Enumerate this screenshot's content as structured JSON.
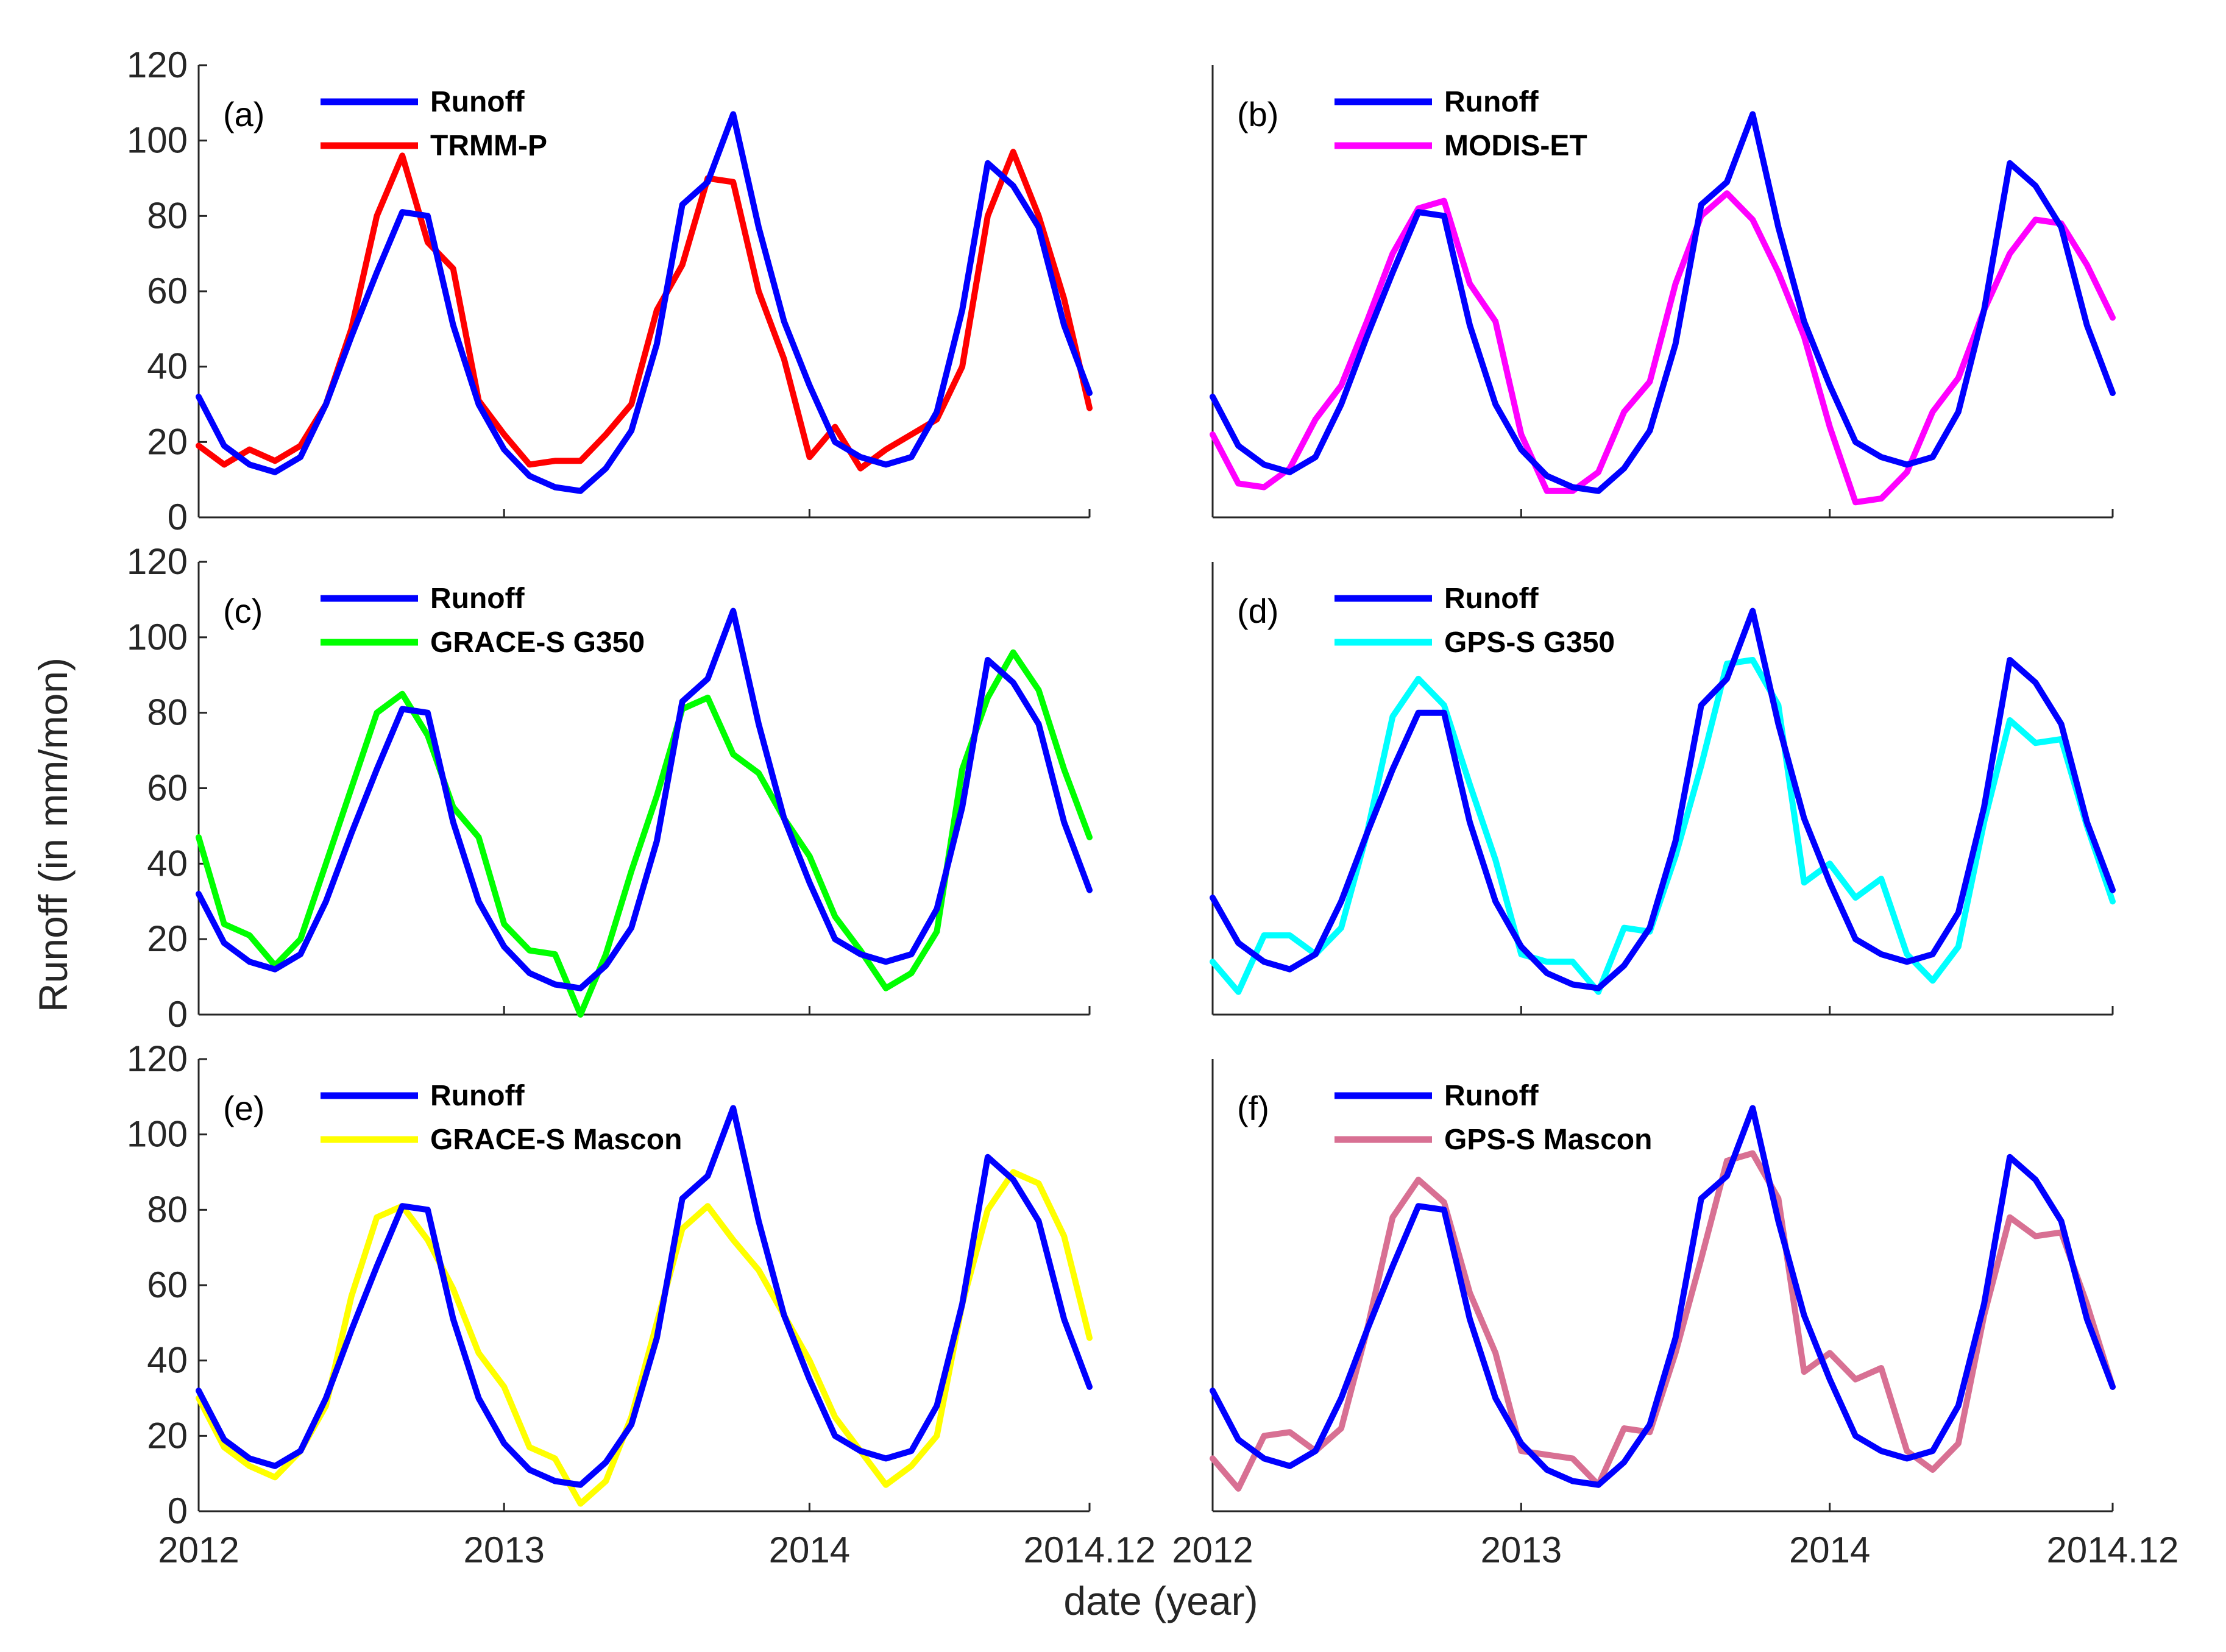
{
  "figure": {
    "ylabel": "Runoff (in mm/mon)",
    "xlabel": "date (year)"
  },
  "colors": {
    "Runoff": "#0000FF",
    "TRMM-P": "#FF0000",
    "MODIS-ET": "#FF00FF",
    "GRACE-S G350": "#00FF00",
    "GPS-S G350": "#00FFFF",
    "GRACE-S Mascon": "#FFFF00",
    "GPS-S Mascon": "#D87093"
  },
  "chart_data": [
    {
      "type": "line",
      "panel": "(a)",
      "xlim": [
        2012,
        2014.917
      ],
      "ylim": [
        0,
        120
      ],
      "x_ticks": [
        2012,
        2013,
        2014,
        2014.917
      ],
      "x_tick_labels": [
        "2012",
        "2013",
        "2014",
        "2014.12"
      ],
      "y_ticks": [
        0,
        20,
        40,
        60,
        80,
        100,
        120
      ],
      "y_tick_labels": [
        "0",
        "20",
        "40",
        "60",
        "80",
        "100",
        "120"
      ],
      "show_y_ticks": true,
      "series": [
        {
          "name": "Runoff",
          "values": [
            32,
            19,
            14,
            12,
            16,
            30,
            48,
            65,
            81,
            80,
            51,
            30,
            18,
            11,
            8,
            7,
            13,
            23,
            46,
            83,
            89,
            107,
            77,
            52,
            35,
            20,
            16,
            14,
            16,
            28,
            55,
            94,
            88,
            77,
            51,
            33
          ]
        },
        {
          "name": "TRMM-P",
          "values": [
            19,
            14,
            18,
            15,
            19,
            30,
            50,
            80,
            96,
            73,
            66,
            31,
            22,
            14,
            15,
            15,
            22,
            30,
            55,
            67,
            90,
            89,
            60,
            42,
            16,
            24,
            13,
            18,
            22,
            26,
            40,
            80,
            97,
            80,
            58,
            29
          ]
        }
      ]
    },
    {
      "type": "line",
      "panel": "(b)",
      "xlim": [
        2012,
        2014.917
      ],
      "ylim": [
        0,
        120
      ],
      "x_ticks": [
        2012,
        2013,
        2014,
        2014.917
      ],
      "x_tick_labels": [
        "2012",
        "2013",
        "2014",
        "2014.12"
      ],
      "y_ticks": [
        0,
        20,
        40,
        60,
        80,
        100,
        120
      ],
      "y_tick_labels": [
        "0",
        "20",
        "40",
        "60",
        "80",
        "100",
        "120"
      ],
      "show_y_ticks": false,
      "series": [
        {
          "name": "Runoff",
          "values": [
            32,
            19,
            14,
            12,
            16,
            30,
            48,
            65,
            81,
            80,
            51,
            30,
            18,
            11,
            8,
            7,
            13,
            23,
            46,
            83,
            89,
            107,
            77,
            52,
            35,
            20,
            16,
            14,
            16,
            28,
            55,
            94,
            88,
            77,
            51,
            33
          ]
        },
        {
          "name": "MODIS-ET",
          "values": [
            22,
            9,
            8,
            13,
            26,
            35,
            52,
            70,
            82,
            84,
            62,
            52,
            22,
            7,
            7,
            12,
            28,
            36,
            62,
            80,
            86,
            79,
            65,
            48,
            24,
            4,
            5,
            12,
            28,
            37,
            55,
            70,
            79,
            78,
            67,
            53
          ]
        }
      ]
    },
    {
      "type": "line",
      "panel": "(c)",
      "xlim": [
        2012,
        2014.917
      ],
      "ylim": [
        0,
        120
      ],
      "x_ticks": [
        2012,
        2013,
        2014,
        2014.917
      ],
      "x_tick_labels": [
        "2012",
        "2013",
        "2014",
        "2014.12"
      ],
      "y_ticks": [
        0,
        20,
        40,
        60,
        80,
        100,
        120
      ],
      "y_tick_labels": [
        "0",
        "20",
        "40",
        "60",
        "80",
        "100",
        "120"
      ],
      "show_y_ticks": true,
      "series": [
        {
          "name": "Runoff",
          "values": [
            32,
            19,
            14,
            12,
            16,
            30,
            48,
            65,
            81,
            80,
            51,
            30,
            18,
            11,
            8,
            7,
            13,
            23,
            46,
            83,
            89,
            107,
            77,
            52,
            35,
            20,
            16,
            14,
            16,
            28,
            55,
            94,
            88,
            77,
            51,
            33
          ]
        },
        {
          "name": "GRACE-S G350",
          "values": [
            47,
            24,
            21,
            13,
            20,
            40,
            60,
            80,
            85,
            74,
            55,
            47,
            24,
            17,
            16,
            0,
            16,
            38,
            58,
            81,
            84,
            69,
            64,
            52,
            42,
            26,
            17,
            7,
            11,
            22,
            65,
            84,
            96,
            86,
            65,
            47
          ]
        }
      ]
    },
    {
      "type": "line",
      "panel": "(d)",
      "xlim": [
        2012,
        2014.917
      ],
      "ylim": [
        0,
        120
      ],
      "x_ticks": [
        2012,
        2013,
        2014,
        2014.917
      ],
      "x_tick_labels": [
        "2012",
        "2013",
        "2014",
        "2014.12"
      ],
      "y_ticks": [
        0,
        20,
        40,
        60,
        80,
        100,
        120
      ],
      "y_tick_labels": [
        "0",
        "20",
        "40",
        "60",
        "80",
        "100",
        "120"
      ],
      "show_y_ticks": false,
      "series": [
        {
          "name": "Runoff",
          "values": [
            31,
            19,
            14,
            12,
            16,
            30,
            48,
            65,
            80,
            80,
            51,
            30,
            18,
            11,
            8,
            7,
            13,
            23,
            46,
            82,
            89,
            107,
            77,
            52,
            35,
            20,
            16,
            14,
            16,
            27,
            55,
            94,
            88,
            77,
            51,
            33
          ]
        },
        {
          "name": "GPS-S G350",
          "values": [
            14,
            6,
            21,
            21,
            16,
            23,
            48,
            79,
            89,
            82,
            61,
            41,
            16,
            14,
            14,
            6,
            23,
            22,
            42,
            66,
            93,
            94,
            82,
            35,
            40,
            31,
            36,
            16,
            9,
            18,
            51,
            78,
            72,
            73,
            50,
            30
          ]
        }
      ]
    },
    {
      "type": "line",
      "panel": "(e)",
      "xlim": [
        2012,
        2014.917
      ],
      "ylim": [
        0,
        120
      ],
      "x_ticks": [
        2012,
        2013,
        2014,
        2014.917
      ],
      "x_tick_labels": [
        "2012",
        "2013",
        "2014",
        "2014.12"
      ],
      "y_ticks": [
        0,
        20,
        40,
        60,
        80,
        100,
        120
      ],
      "y_tick_labels": [
        "0",
        "20",
        "40",
        "60",
        "80",
        "100",
        "120"
      ],
      "show_y_ticks": true,
      "series": [
        {
          "name": "Runoff",
          "values": [
            32,
            19,
            14,
            12,
            16,
            30,
            48,
            65,
            81,
            80,
            51,
            30,
            18,
            11,
            8,
            7,
            13,
            23,
            46,
            83,
            89,
            107,
            77,
            52,
            35,
            20,
            16,
            14,
            16,
            28,
            55,
            94,
            88,
            77,
            51,
            33
          ]
        },
        {
          "name": "GRACE-S Mascon",
          "values": [
            30,
            17,
            12,
            9,
            16,
            28,
            57,
            78,
            81,
            72,
            59,
            42,
            33,
            17,
            14,
            2,
            8,
            25,
            50,
            75,
            81,
            72,
            64,
            52,
            40,
            25,
            16,
            7,
            12,
            20,
            55,
            80,
            90,
            87,
            73,
            46
          ]
        }
      ]
    },
    {
      "type": "line",
      "panel": "(f)",
      "xlim": [
        2012,
        2014.917
      ],
      "ylim": [
        0,
        120
      ],
      "x_ticks": [
        2012,
        2013,
        2014,
        2014.917
      ],
      "x_tick_labels": [
        "2012",
        "2013",
        "2014",
        "2014.12"
      ],
      "y_ticks": [
        0,
        20,
        40,
        60,
        80,
        100,
        120
      ],
      "y_tick_labels": [
        "0",
        "20",
        "40",
        "60",
        "80",
        "100",
        "120"
      ],
      "show_y_ticks": false,
      "series": [
        {
          "name": "Runoff",
          "values": [
            32,
            19,
            14,
            12,
            16,
            30,
            48,
            65,
            81,
            80,
            51,
            30,
            18,
            11,
            8,
            7,
            13,
            23,
            46,
            83,
            89,
            107,
            77,
            52,
            35,
            20,
            16,
            14,
            16,
            28,
            55,
            94,
            88,
            77,
            51,
            33
          ]
        },
        {
          "name": "GPS-S Mascon",
          "values": [
            14,
            6,
            20,
            21,
            16,
            22,
            48,
            78,
            88,
            82,
            58,
            42,
            16,
            15,
            14,
            7,
            22,
            21,
            42,
            67,
            93,
            95,
            83,
            37,
            42,
            35,
            38,
            16,
            11,
            18,
            52,
            78,
            73,
            74,
            55,
            33
          ]
        }
      ]
    }
  ]
}
